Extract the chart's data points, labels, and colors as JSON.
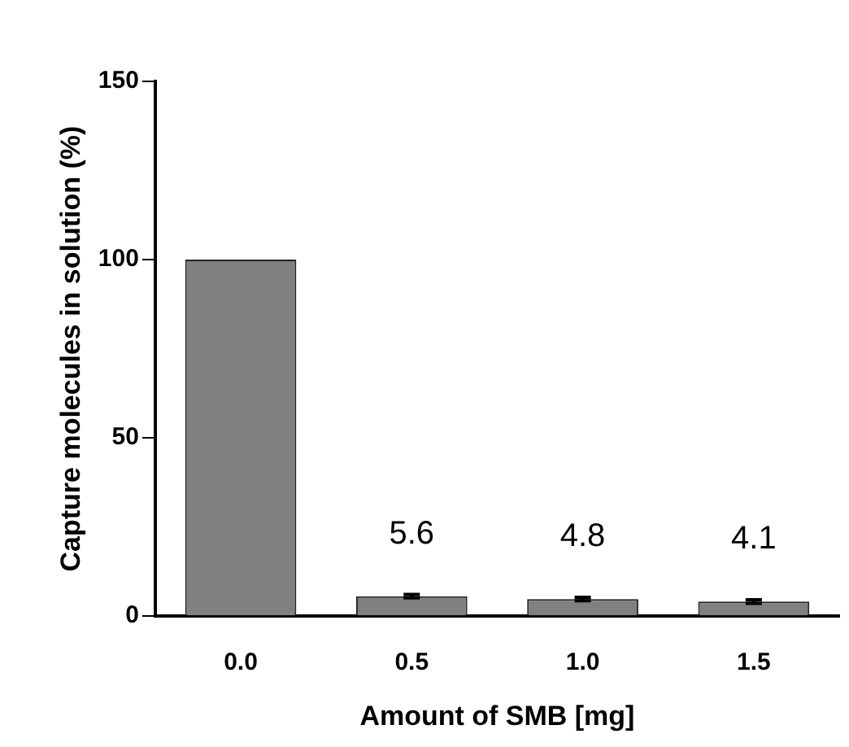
{
  "chart_data": {
    "type": "bar",
    "xlabel": "Amount of SMB [mg]",
    "ylabel": "Capture molecules in solution (%)",
    "categories": [
      "0.0",
      "0.5",
      "1.0",
      "1.5"
    ],
    "values": [
      100,
      5.6,
      4.8,
      4.1
    ],
    "errors": [
      null,
      0.5,
      0.5,
      0.5
    ],
    "value_labels": [
      null,
      "5.6",
      "4.8",
      "4.1"
    ],
    "color": "#808080",
    "ylim": [
      0,
      150
    ],
    "yticks": [
      0,
      50,
      100,
      150
    ],
    "grid": false
  }
}
